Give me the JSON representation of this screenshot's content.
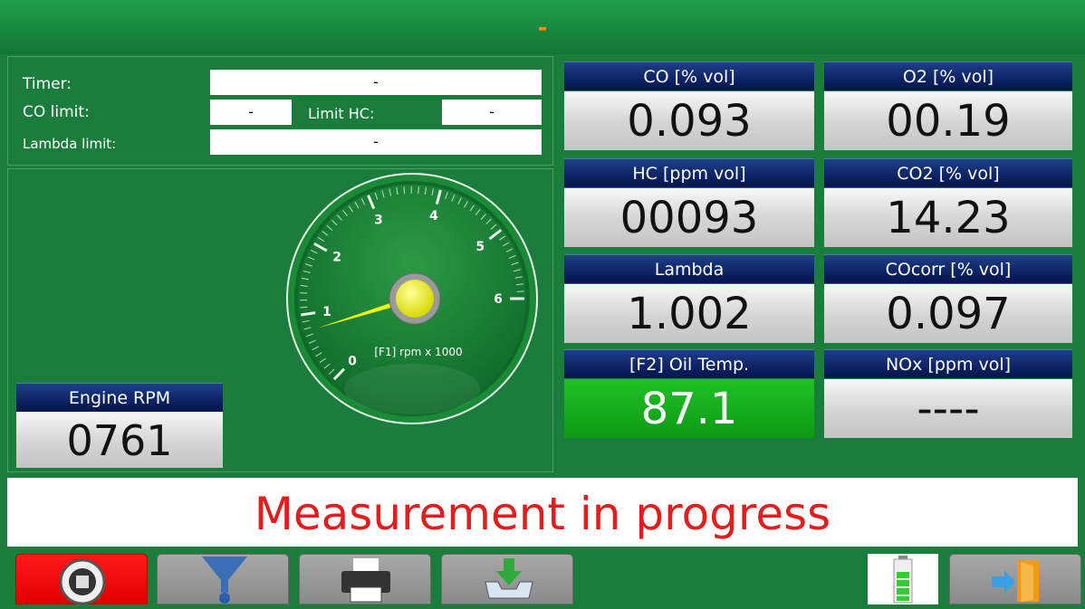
{
  "header": {
    "title": "-"
  },
  "limits": {
    "timer": {
      "label": "Timer:",
      "value": "-"
    },
    "co_limit": {
      "label": "CO limit:",
      "value": "-"
    },
    "hc_limit": {
      "label": "Limit HC:",
      "value": "-"
    },
    "lambda_limit": {
      "label": "Lambda limit:",
      "value": "-"
    }
  },
  "gauge": {
    "ticks": [
      0,
      1,
      2,
      3,
      4,
      5,
      6
    ],
    "caption": "[F1] rpm x 1000"
  },
  "engine_rpm": {
    "label": "Engine RPM",
    "value": "0761"
  },
  "readings": [
    {
      "label": "CO [% vol]",
      "value": "0.093"
    },
    {
      "label": "O2 [% vol]",
      "value": "00.19"
    },
    {
      "label": "HC [ppm vol]",
      "value": "00093"
    },
    {
      "label": "CO2 [% vol]",
      "value": "14.23"
    },
    {
      "label": "Lambda",
      "value": "1.002"
    },
    {
      "label": "COcorr [% vol]",
      "value": "0.097"
    },
    {
      "label": "[F2] Oil Temp.",
      "value": "87.1"
    },
    {
      "label": "NOx [ppm vol]",
      "value": "----"
    }
  ],
  "status": "Measurement in progress"
}
